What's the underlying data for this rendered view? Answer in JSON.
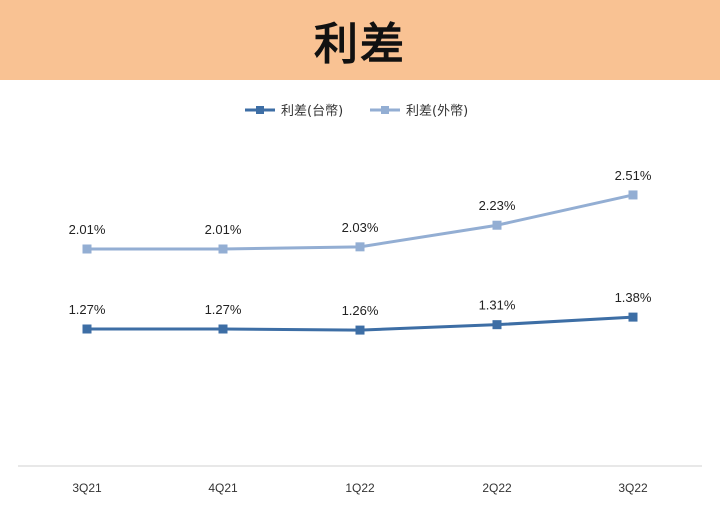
{
  "header": {
    "title": "利差"
  },
  "chart_data": {
    "type": "line",
    "title": "利差",
    "xlabel": "",
    "ylabel": "",
    "categories": [
      "3Q21",
      "4Q21",
      "1Q22",
      "2Q22",
      "3Q22"
    ],
    "series": [
      {
        "name": "利差(台幣)",
        "color": "#3d6ea5",
        "values": [
          1.27,
          1.27,
          1.26,
          1.31,
          1.38
        ],
        "labels": [
          "1.27%",
          "1.27%",
          "1.26%",
          "1.31%",
          "1.38%"
        ]
      },
      {
        "name": "利差(外幣)",
        "color": "#93aed3",
        "values": [
          2.01,
          2.01,
          2.03,
          2.23,
          2.51
        ],
        "labels": [
          "2.01%",
          "2.01%",
          "2.03%",
          "2.23%",
          "2.51%"
        ]
      }
    ],
    "ylim": [
      0,
      3
    ],
    "grid": false,
    "legend": "top-center"
  }
}
